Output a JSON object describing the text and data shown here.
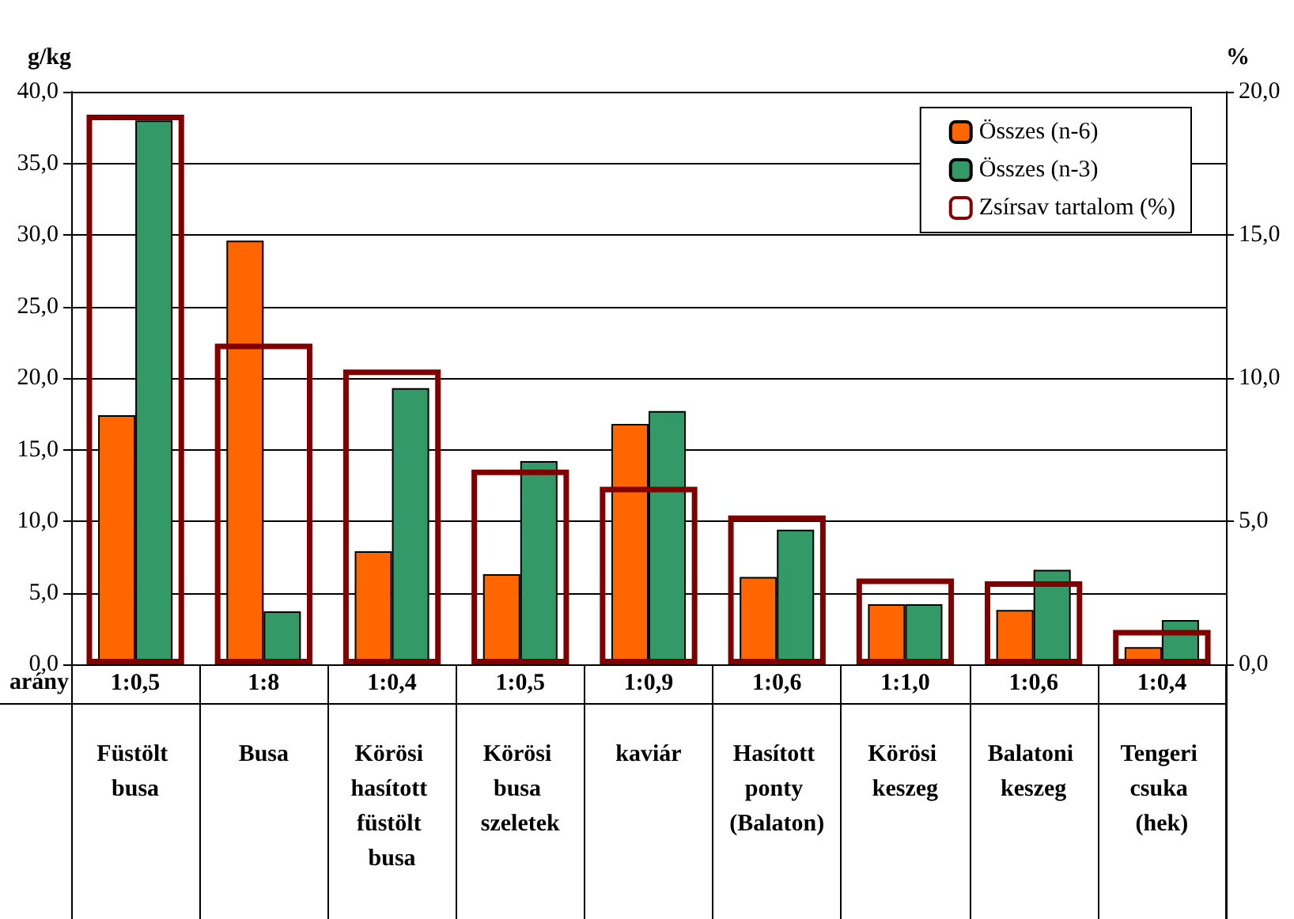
{
  "chart_data": {
    "type": "bar",
    "ylabel": "g/kg",
    "y2label": "%",
    "categories": [
      "Füstölt busa",
      "Busa",
      "Körösi hasított füstölt busa",
      "Körösi busa szeletek",
      "kaviár",
      "Hasított ponty (Balaton)",
      "Körösi keszeg",
      "Balatoni keszeg",
      "Tengeri csuka (hek)"
    ],
    "series": [
      {
        "name": "Összes (n-6)",
        "color": "#ff6600",
        "values": [
          17.4,
          29.6,
          7.9,
          6.3,
          16.8,
          6.1,
          4.2,
          3.8,
          1.2
        ]
      },
      {
        "name": "Összes (n-3)",
        "color": "#339966",
        "values": [
          38.0,
          3.7,
          19.3,
          14.2,
          17.7,
          9.4,
          4.2,
          6.6,
          3.1
        ]
      },
      {
        "name": "Zsírsav tartalom (%)",
        "color": "#800000",
        "axis": "y2",
        "values": [
          19.2,
          11.2,
          10.3,
          6.8,
          6.2,
          5.2,
          3.0,
          2.9,
          1.2
        ]
      }
    ],
    "ylim": [
      0,
      40
    ],
    "yticks": [
      {
        "value": 0,
        "label": "0,0"
      },
      {
        "value": 5,
        "label": "5,0"
      },
      {
        "value": 10,
        "label": "10,0"
      },
      {
        "value": 15,
        "label": "15,0"
      },
      {
        "value": 20,
        "label": "20,0"
      },
      {
        "value": 25,
        "label": "25,0"
      },
      {
        "value": 30,
        "label": "30,0"
      },
      {
        "value": 35,
        "label": "35,0"
      },
      {
        "value": 40,
        "label": "40,0"
      }
    ],
    "y2lim": [
      0,
      20
    ],
    "y2ticks": [
      {
        "value": 0,
        "label": "0,0"
      },
      {
        "value": 5,
        "label": "5,0"
      },
      {
        "value": 10,
        "label": "10,0"
      },
      {
        "value": 15,
        "label": "15,0"
      },
      {
        "value": 20,
        "label": "20,0"
      }
    ],
    "grid": "y",
    "legend": "top right",
    "annotations": [
      "arány",
      "1:0,5",
      "1:8",
      "1:0,4",
      "1:0,5",
      "1:0,9",
      "1:0,6",
      "1:1,0",
      "1:0,6",
      "1:0,4"
    ]
  }
}
